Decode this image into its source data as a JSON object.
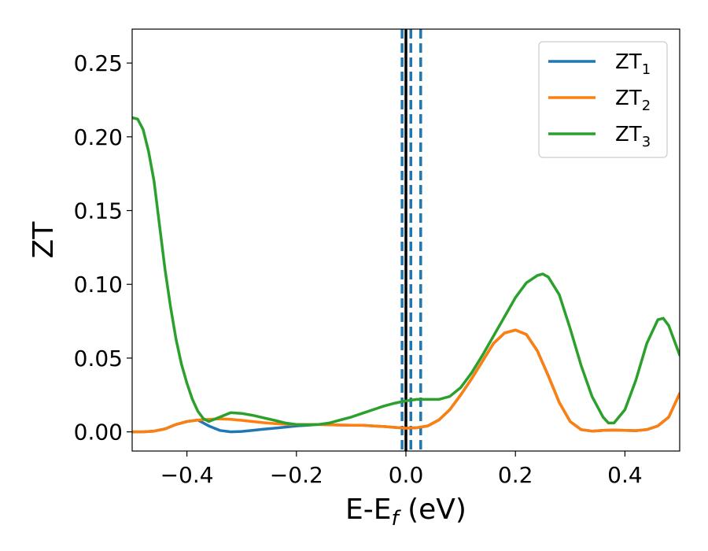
{
  "chart_data": {
    "type": "line",
    "xlabel": "E-E",
    "xlabel_sub": "f",
    "xlabel_unit": " (eV)",
    "ylabel": "ZT",
    "xlim": [
      -0.5,
      0.5
    ],
    "ylim": [
      -0.013,
      0.273
    ],
    "xticks": [
      -0.4,
      -0.2,
      0.0,
      0.2,
      0.4
    ],
    "xtick_labels": [
      "−0.4",
      "−0.2",
      "0.0",
      "0.2",
      "0.4"
    ],
    "yticks": [
      0.0,
      0.05,
      0.1,
      0.15,
      0.2,
      0.25
    ],
    "ytick_labels": [
      "0.00",
      "0.05",
      "0.10",
      "0.15",
      "0.20",
      "0.25"
    ],
    "grid": false,
    "legend_position": "top-right",
    "vlines": [
      {
        "x": 0.0,
        "style": "solid",
        "color": "#000000"
      },
      {
        "x": -0.007,
        "style": "dashed",
        "color": "#1f77b4"
      },
      {
        "x": 0.009,
        "style": "dashed",
        "color": "#1f77b4"
      },
      {
        "x": 0.027,
        "style": "dashed",
        "color": "#1f77b4"
      }
    ],
    "series": [
      {
        "name": "ZT",
        "sub": "1",
        "color": "#1f77b4",
        "x": [
          -0.5,
          -0.48,
          -0.46,
          -0.44,
          -0.42,
          -0.4,
          -0.38,
          -0.36,
          -0.34,
          -0.32,
          -0.3,
          -0.28,
          -0.26,
          -0.24,
          -0.22,
          -0.2,
          -0.18,
          -0.16,
          -0.14,
          -0.12,
          -0.1,
          -0.08,
          -0.06,
          -0.04,
          -0.02,
          0.0,
          0.02,
          0.04,
          0.06,
          0.08,
          0.1,
          0.12,
          0.14,
          0.16,
          0.18,
          0.2,
          0.22,
          0.24,
          0.26,
          0.28,
          0.3,
          0.32,
          0.34,
          0.36,
          0.38,
          0.4,
          0.42,
          0.44,
          0.46,
          0.48,
          0.5
        ],
        "y": [
          0.0,
          0.0,
          0.0005,
          0.002,
          0.005,
          0.007,
          0.008,
          0.004,
          0.001,
          0.0,
          0.0003,
          0.001,
          0.0018,
          0.0025,
          0.0032,
          0.004,
          0.0045,
          0.005,
          0.0048,
          0.0046,
          0.0045,
          0.0045,
          0.004,
          0.0036,
          0.003,
          0.0025,
          0.0028,
          0.004,
          0.008,
          0.015,
          0.025,
          0.036,
          0.048,
          0.06,
          0.067,
          0.069,
          0.066,
          0.055,
          0.038,
          0.02,
          0.007,
          0.0015,
          0.0005,
          0.001,
          0.0012,
          0.001,
          0.0008,
          0.0015,
          0.004,
          0.01,
          0.026
        ]
      },
      {
        "name": "ZT",
        "sub": "2",
        "color": "#ff7f0e",
        "x": [
          -0.5,
          -0.48,
          -0.46,
          -0.44,
          -0.42,
          -0.4,
          -0.38,
          -0.36,
          -0.34,
          -0.32,
          -0.3,
          -0.28,
          -0.26,
          -0.24,
          -0.22,
          -0.2,
          -0.18,
          -0.16,
          -0.14,
          -0.12,
          -0.1,
          -0.08,
          -0.06,
          -0.04,
          -0.02,
          0.0,
          0.02,
          0.04,
          0.06,
          0.08,
          0.1,
          0.12,
          0.14,
          0.16,
          0.18,
          0.2,
          0.22,
          0.24,
          0.26,
          0.28,
          0.3,
          0.32,
          0.34,
          0.36,
          0.38,
          0.4,
          0.42,
          0.44,
          0.46,
          0.48,
          0.5
        ],
        "y": [
          0.0,
          0.0,
          0.0005,
          0.002,
          0.005,
          0.007,
          0.008,
          0.0085,
          0.0088,
          0.0085,
          0.0078,
          0.007,
          0.0062,
          0.0056,
          0.0052,
          0.005,
          0.005,
          0.005,
          0.0048,
          0.0046,
          0.0045,
          0.0045,
          0.004,
          0.0036,
          0.003,
          0.0025,
          0.0028,
          0.004,
          0.008,
          0.015,
          0.025,
          0.036,
          0.048,
          0.06,
          0.067,
          0.069,
          0.066,
          0.055,
          0.038,
          0.02,
          0.007,
          0.0015,
          0.0005,
          0.001,
          0.0012,
          0.001,
          0.0008,
          0.0015,
          0.004,
          0.01,
          0.026
        ]
      },
      {
        "name": "ZT",
        "sub": "3",
        "color": "#2ca02c",
        "x": [
          -0.5,
          -0.49,
          -0.48,
          -0.47,
          -0.46,
          -0.45,
          -0.44,
          -0.43,
          -0.42,
          -0.41,
          -0.4,
          -0.39,
          -0.38,
          -0.37,
          -0.36,
          -0.34,
          -0.32,
          -0.3,
          -0.28,
          -0.26,
          -0.24,
          -0.22,
          -0.2,
          -0.18,
          -0.16,
          -0.14,
          -0.12,
          -0.1,
          -0.08,
          -0.06,
          -0.04,
          -0.02,
          0.0,
          0.02,
          0.04,
          0.06,
          0.08,
          0.1,
          0.12,
          0.14,
          0.16,
          0.18,
          0.2,
          0.22,
          0.24,
          0.25,
          0.26,
          0.28,
          0.3,
          0.32,
          0.34,
          0.36,
          0.37,
          0.38,
          0.4,
          0.42,
          0.44,
          0.46,
          0.47,
          0.48,
          0.5
        ],
        "y": [
          0.213,
          0.212,
          0.205,
          0.19,
          0.17,
          0.14,
          0.11,
          0.085,
          0.063,
          0.046,
          0.033,
          0.022,
          0.014,
          0.009,
          0.007,
          0.01,
          0.013,
          0.0125,
          0.0112,
          0.0095,
          0.0078,
          0.006,
          0.005,
          0.0048,
          0.005,
          0.006,
          0.008,
          0.01,
          0.0125,
          0.015,
          0.0175,
          0.0195,
          0.021,
          0.022,
          0.022,
          0.022,
          0.024,
          0.03,
          0.04,
          0.052,
          0.065,
          0.078,
          0.091,
          0.101,
          0.106,
          0.107,
          0.105,
          0.093,
          0.07,
          0.045,
          0.024,
          0.01,
          0.006,
          0.006,
          0.015,
          0.035,
          0.06,
          0.076,
          0.077,
          0.072,
          0.052
        ]
      }
    ]
  }
}
